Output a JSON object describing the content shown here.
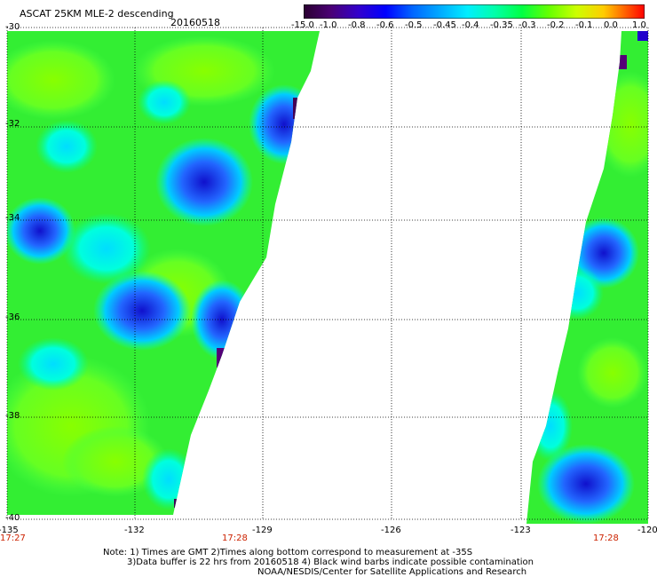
{
  "title": {
    "product": "ASCAT 25KM MLE-2 descending",
    "date": "20160518"
  },
  "colorbar": {
    "labels": [
      "-15.0",
      "-1.0",
      "-0.8",
      "-0.6",
      "-0.5",
      "-0.45",
      "-0.4",
      "-0.35",
      "-0.3",
      "-0.2",
      "-0.1",
      "0.0",
      "1.0"
    ],
    "colors": [
      "#2a0030",
      "#4a0075",
      "#3300cc",
      "#0000ff",
      "#0066ff",
      "#00aaff",
      "#00eeff",
      "#00ffaa",
      "#00ff44",
      "#66ff00",
      "#ccff00",
      "#ffcc00",
      "#ff6600",
      "#ff0000"
    ]
  },
  "lat_labels": [
    "-30",
    "-32",
    "-34",
    "-36",
    "-38",
    "-40"
  ],
  "lon_labels": [
    "-135",
    "-132",
    "-129",
    "-126",
    "-123",
    "-120"
  ],
  "pass_times": [
    "17:27",
    "17:28",
    "17:28"
  ],
  "notes": [
    "Note: 1) Times are GMT 2)Times along bottom correspond to measurement at -35S",
    "3)Data buffer is 22 hrs from 20160518 4) Black wind barbs indicate possible contamination",
    "NOAA/NESDIS/Center for Satellite Applications and Research"
  ],
  "colors": {
    "grid": "#000000",
    "time_label": "#cc2200",
    "swath_base": "#33ee33"
  }
}
